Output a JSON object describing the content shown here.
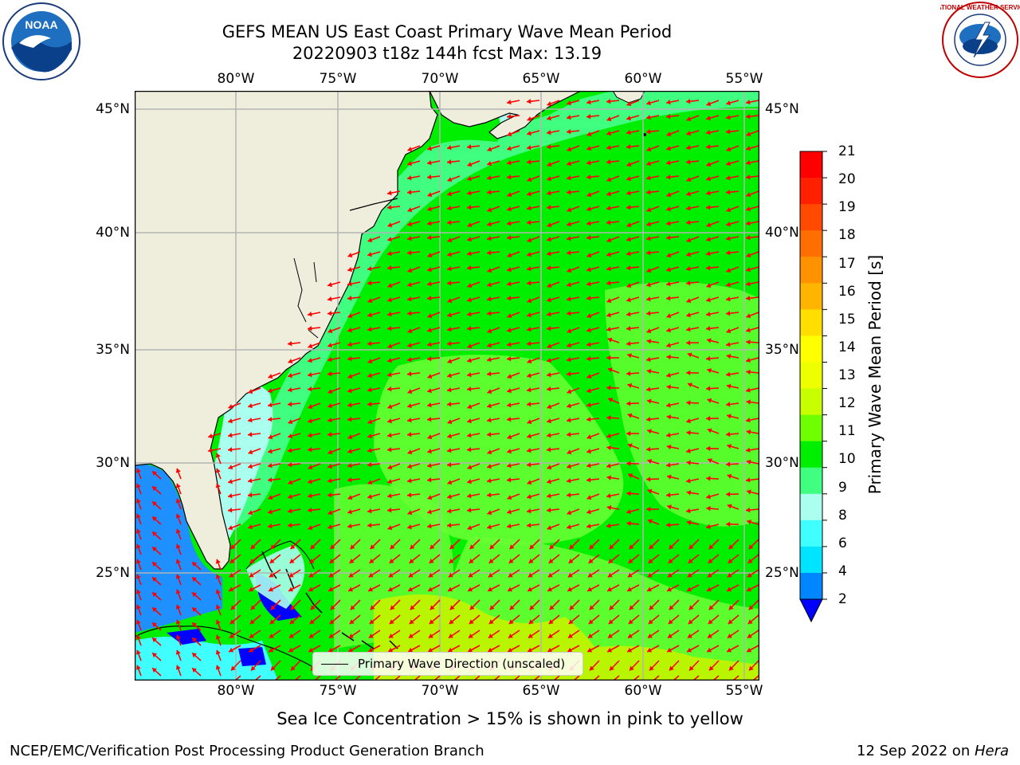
{
  "title": {
    "line1": "GEFS MEAN US East Coast Primary Wave Mean Period",
    "line2": "20220903 t18z 144h fcst   Max: 13.19"
  },
  "map": {
    "lon_ticks": [
      "80°W",
      "75°W",
      "70°W",
      "65°W",
      "60°W",
      "55°W"
    ],
    "lat_ticks": [
      "45°N",
      "40°N",
      "35°N",
      "30°N",
      "25°N"
    ],
    "colors": {
      "land": "#efeddc",
      "ocean_main": "#00ee00",
      "ocean_light": "#66ff33",
      "coastal": "#40ff80",
      "shelf": "#aaffee",
      "gulf": "#1e90ff",
      "gulf_deep": "#0000ff",
      "warm_patch": "#b9f500",
      "grid": "#b4b4b4",
      "arrow": "#ff0000"
    }
  },
  "legend": {
    "label": "Primary Wave Direction (unscaled)"
  },
  "colorbar": {
    "label": "Primary Wave Mean Period [s]",
    "ticks": [
      "21",
      "20",
      "19",
      "18",
      "17",
      "16",
      "15",
      "14",
      "13",
      "12",
      "11",
      "10",
      "9",
      "8",
      "6",
      "4",
      "2"
    ],
    "colors": [
      "#ff0000",
      "#ff2000",
      "#ff4a00",
      "#ff6e00",
      "#ff9200",
      "#ffb400",
      "#ffde00",
      "#ffff00",
      "#eeff00",
      "#c8ff00",
      "#6eff00",
      "#00ee00",
      "#40ff80",
      "#aaffee",
      "#40ffff",
      "#00e4ff",
      "#0086ff"
    ],
    "extend_color": "#0000ff"
  },
  "logos": {
    "left": "NOAA",
    "right": "NATIONAL WEATHER SERVICE"
  },
  "subtitle": "Sea Ice Concentration > 15% is shown in pink to yellow",
  "footer": {
    "left": "NCEP/EMC/Verification Post Processing Product Generation Branch",
    "right_date": "12 Sep 2022 on ",
    "right_host": "Hera"
  }
}
